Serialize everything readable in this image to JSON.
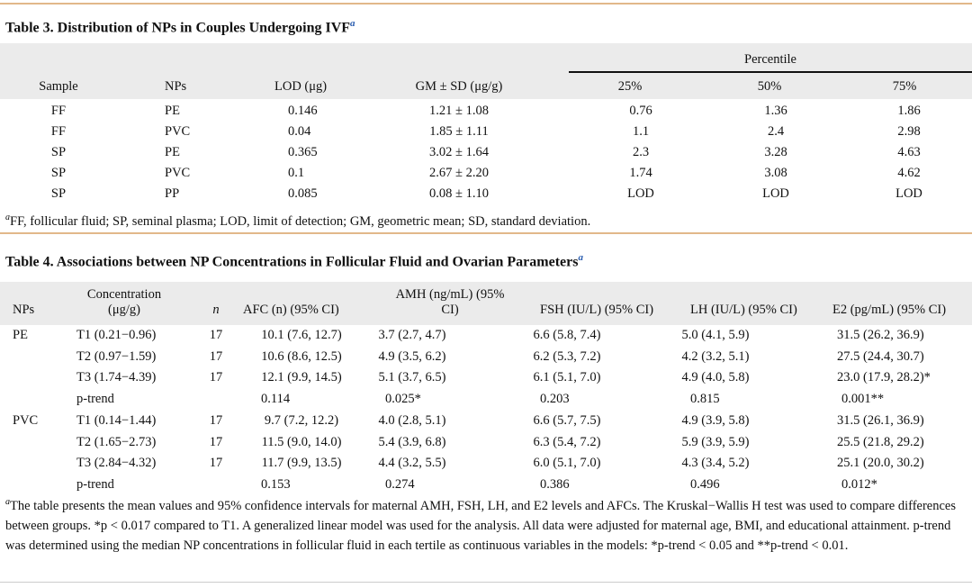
{
  "table3": {
    "title": "Table 3. Distribution of NPs in Couples Undergoing IVF",
    "title_mark": "a",
    "spanner": "Percentile",
    "headers": [
      "Sample",
      "NPs",
      "LOD (μg)",
      "GM ± SD (μg/g)",
      "25%",
      "50%",
      "75%"
    ],
    "rows": [
      [
        "FF",
        "PE",
        "0.146",
        "1.21 ± 1.08",
        "0.76",
        "1.36",
        "1.86"
      ],
      [
        "FF",
        "PVC",
        "0.04",
        "1.85 ± 1.11",
        "1.1",
        "2.4",
        "2.98"
      ],
      [
        "SP",
        "PE",
        "0.365",
        "3.02 ± 1.64",
        "2.3",
        "3.28",
        "4.63"
      ],
      [
        "SP",
        "PVC",
        "0.1",
        "2.67 ± 2.20",
        "1.74",
        "3.08",
        "4.62"
      ],
      [
        "SP",
        "PP",
        "0.085",
        "0.08 ± 1.10",
        "LOD",
        "LOD",
        "LOD"
      ]
    ],
    "footnote_mark": "a",
    "footnote": "FF, follicular fluid; SP, seminal plasma; LOD, limit of detection; GM, geometric mean; SD, standard deviation."
  },
  "table4": {
    "title": "Table 4. Associations between NP Concentrations in Follicular Fluid and Ovarian Parameters",
    "title_mark": "a",
    "headers": [
      "NPs",
      "Concentration\n(μg/g)",
      "n",
      "AFC (n) (95% CI)",
      "AMH (ng/mL) (95%\nCI)",
      "FSH (IU/L) (95% CI)",
      "LH (IU/L) (95% CI)",
      "E2 (pg/mL) (95% CI)"
    ],
    "rows": [
      [
        "PE",
        "T1 (0.21−0.96)",
        "17",
        "10.1 (7.6, 12.7)",
        "3.7 (2.7, 4.7)",
        "6.6 (5.8, 7.4)",
        "5.0 (4.1, 5.9)",
        "31.5 (26.2, 36.9)"
      ],
      [
        "",
        "T2 (0.97−1.59)",
        "17",
        "10.6 (8.6, 12.5)",
        "4.9 (3.5, 6.2)",
        "6.2 (5.3, 7.2)",
        "4.2 (3.2, 5.1)",
        "27.5 (24.4, 30.7)"
      ],
      [
        "",
        "T3 (1.74−4.39)",
        "17",
        "12.1 (9.9, 14.5)",
        "5.1 (3.7, 6.5)",
        "6.1 (5.1, 7.0)",
        "4.9 (4.0, 5.8)",
        "23.0 (17.9, 28.2)*"
      ],
      [
        "",
        "p-trend",
        "",
        "0.114",
        "0.025*",
        "0.203",
        "0.815",
        "0.001**"
      ],
      [
        "PVC",
        "T1 (0.14−1.44)",
        "17",
        "9.7 (7.2, 12.2)",
        "4.0 (2.8, 5.1)",
        "6.6 (5.7, 7.5)",
        "4.9 (3.9, 5.8)",
        "31.5 (26.1, 36.9)"
      ],
      [
        "",
        "T2 (1.65−2.73)",
        "17",
        "11.5 (9.0, 14.0)",
        "5.4 (3.9, 6.8)",
        "6.3 (5.4, 7.2)",
        "5.9 (3.9, 5.9)",
        "25.5 (21.8, 29.2)"
      ],
      [
        "",
        "T3 (2.84−4.32)",
        "17",
        "11.7 (9.9, 13.5)",
        "4.4 (3.2, 5.5)",
        "6.0 (5.1, 7.0)",
        "4.3 (3.4, 5.2)",
        "25.1 (20.0, 30.2)"
      ],
      [
        "",
        "p-trend",
        "",
        "0.153",
        "0.274",
        "0.386",
        "0.496",
        "0.012*"
      ]
    ],
    "footnote_mark": "a",
    "footnote": "The table presents the mean values and 95% confidence intervals for maternal AMH, FSH, LH, and E2 levels and AFCs. The Kruskal−Wallis H test was used to compare differences between groups. *p < 0.017 compared to T1. A generalized linear model was used for the analysis. All data were adjusted for maternal age, BMI, and educational attainment. p-trend was determined using the median NP concentrations in follicular fluid in each tertile as continuous variables in the models: *p-trend < 0.05 and **p-trend < 0.01."
  }
}
